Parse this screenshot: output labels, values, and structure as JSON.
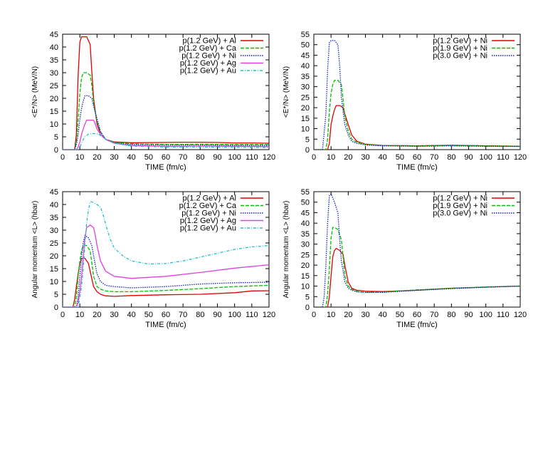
{
  "chart_data": [
    {
      "type": "line",
      "xlabel": "TIME (fm/c)",
      "ylabel": "<E*/N> (MeV/N)",
      "xlim": [
        0,
        120
      ],
      "ylim": [
        0,
        45
      ],
      "xticks": [
        0,
        10,
        20,
        30,
        40,
        50,
        60,
        70,
        80,
        90,
        100,
        110,
        120
      ],
      "yticks": [
        0,
        5,
        10,
        15,
        20,
        25,
        30,
        35,
        40,
        45
      ],
      "grid": false,
      "legend": "top-right",
      "series": [
        {
          "name": "p(1.2 GeV) + Al",
          "color": "#e00000",
          "dash": "solid",
          "x": [
            0,
            7,
            8,
            9,
            10,
            11,
            12,
            14,
            16,
            17,
            18,
            20,
            22,
            25,
            30,
            40,
            60,
            70,
            80,
            90,
            100,
            110,
            120
          ],
          "y": [
            0,
            0,
            6,
            29,
            42,
            44,
            44,
            44,
            41,
            30,
            20,
            10,
            6,
            4,
            3,
            2.7,
            2.8,
            2.9,
            2.9,
            2.8,
            2.6,
            2.6,
            2.5
          ]
        },
        {
          "name": "p(1.2 GeV) + Ca",
          "color": "#00c000",
          "dash": "dashed",
          "x": [
            0,
            7,
            8,
            9,
            10,
            11,
            12,
            14,
            16,
            17,
            18,
            20,
            22,
            25,
            30,
            40,
            60,
            80,
            100,
            120
          ],
          "y": [
            0,
            0,
            3,
            12,
            22,
            28,
            30,
            30,
            29,
            25,
            18,
            11,
            7,
            4,
            2.8,
            2.3,
            2.0,
            2.1,
            2.0,
            2.0
          ]
        },
        {
          "name": "p(1.2 GeV) + Ni",
          "color": "#1020c0",
          "dash": "dotted",
          "x": [
            0,
            7,
            8,
            9,
            10,
            11,
            12,
            13,
            15,
            17,
            18,
            20,
            22,
            25,
            30,
            40,
            60,
            80,
            100,
            120
          ],
          "y": [
            0,
            0,
            2,
            6,
            12,
            16,
            19,
            21,
            21,
            20,
            17,
            12,
            7,
            4,
            2.6,
            2.0,
            1.8,
            1.8,
            1.7,
            1.6
          ]
        },
        {
          "name": "p(1.2 GeV) + Ag",
          "color": "#e040e0",
          "dash": "solid",
          "x": [
            0,
            8,
            9,
            10,
            11,
            12,
            13,
            14,
            16,
            18,
            19,
            20,
            22,
            25,
            30,
            40,
            60,
            80,
            100,
            120
          ],
          "y": [
            0,
            0,
            1,
            3,
            6,
            8,
            10,
            11.5,
            11.5,
            11.5,
            10,
            8,
            6,
            4,
            2.5,
            1.6,
            1.3,
            1.4,
            1.3,
            1.2
          ]
        },
        {
          "name": "p(1.2 GeV) + Au",
          "color": "#20c0d0",
          "dash": "dashdot",
          "x": [
            0,
            9,
            10,
            11,
            12,
            13,
            15,
            17,
            19,
            21,
            22,
            25,
            30,
            40,
            60,
            80,
            100,
            120
          ],
          "y": [
            0,
            0,
            1,
            2.5,
            4,
            5,
            6,
            6.3,
            6.2,
            6,
            5.5,
            4,
            2.5,
            1.4,
            1.0,
            1.0,
            0.9,
            0.8
          ]
        }
      ]
    },
    {
      "type": "line",
      "xlabel": "TIME (fm/c)",
      "ylabel": "<E*/N> (MeV/N)",
      "xlim": [
        0,
        120
      ],
      "ylim": [
        0,
        55
      ],
      "xticks": [
        0,
        10,
        20,
        30,
        40,
        50,
        60,
        70,
        80,
        90,
        100,
        110,
        120
      ],
      "yticks": [
        0,
        5,
        10,
        15,
        20,
        25,
        30,
        35,
        40,
        45,
        50,
        55
      ],
      "grid": false,
      "legend": "top-right",
      "series": [
        {
          "name": "p(1.2 GeV) + Ni",
          "color": "#e00000",
          "dash": "solid",
          "x": [
            0,
            8,
            9,
            10,
            11,
            12,
            13,
            15,
            17,
            18,
            20,
            22,
            25,
            30,
            40,
            60,
            80,
            100,
            120
          ],
          "y": [
            0,
            0,
            3,
            12,
            16,
            19,
            21,
            21,
            20,
            17,
            12,
            7,
            4,
            2.6,
            2.0,
            1.8,
            2.1,
            1.8,
            1.6
          ]
        },
        {
          "name": "p(1.9 GeV) + Ni",
          "color": "#00c000",
          "dash": "dashed",
          "x": [
            0,
            7,
            8,
            9,
            10,
            11,
            12,
            14,
            16,
            17,
            18,
            20,
            22,
            25,
            30,
            40,
            60,
            80,
            100,
            120
          ],
          "y": [
            0,
            0,
            5,
            18,
            27,
            31,
            33,
            33,
            31,
            24,
            16,
            9,
            5,
            3.5,
            2.5,
            2.0,
            1.8,
            2.0,
            1.8,
            1.6
          ]
        },
        {
          "name": "p(3.0 GeV) + Ni",
          "color": "#1020c0",
          "dash": "dotted",
          "x": [
            0,
            5,
            6,
            7,
            8,
            9,
            10,
            12,
            14,
            15,
            16,
            18,
            20,
            22,
            25,
            30,
            40,
            60,
            80,
            100,
            120
          ],
          "y": [
            0,
            0,
            8,
            17,
            38,
            51,
            52,
            52,
            50,
            40,
            25,
            12,
            7,
            4,
            3,
            2.2,
            1.8,
            1.6,
            1.8,
            1.6,
            1.5
          ]
        }
      ]
    },
    {
      "type": "line",
      "xlabel": "TIME (fm/c)",
      "ylabel": "Angular momentum <L> (hbar)",
      "xlim": [
        0,
        120
      ],
      "ylim": [
        0,
        45
      ],
      "xticks": [
        0,
        10,
        20,
        30,
        40,
        50,
        60,
        70,
        80,
        90,
        100,
        110,
        120
      ],
      "yticks": [
        0,
        5,
        10,
        15,
        20,
        25,
        30,
        35,
        40,
        45
      ],
      "grid": false,
      "legend": "top-right",
      "series": [
        {
          "name": "p(1.2 GeV) + Al",
          "color": "#e00000",
          "dash": "solid",
          "x": [
            0,
            6,
            7,
            8,
            9,
            10,
            11,
            13,
            15,
            16,
            17,
            18,
            20,
            22,
            25,
            30,
            40,
            60,
            80,
            100,
            110,
            120
          ],
          "y": [
            0,
            0,
            3,
            8,
            13,
            17,
            19,
            19,
            17,
            14,
            11,
            8,
            6,
            5,
            4.4,
            4.2,
            4.5,
            4.8,
            5.0,
            5.6,
            6.3,
            6.4
          ]
        },
        {
          "name": "p(1.2 GeV) + Ca",
          "color": "#00c000",
          "dash": "dashed",
          "x": [
            0,
            7,
            8,
            9,
            10,
            11,
            12,
            14,
            16,
            17,
            18,
            20,
            22,
            25,
            30,
            40,
            60,
            80,
            100,
            120
          ],
          "y": [
            0,
            0,
            4,
            12,
            18,
            22,
            24,
            24,
            22,
            17,
            12,
            8,
            7,
            6.3,
            6,
            6,
            6.5,
            7.2,
            8,
            8.5
          ]
        },
        {
          "name": "p(1.2 GeV) + Ni",
          "color": "#1020c0",
          "dash": "dotted",
          "x": [
            0,
            8,
            9,
            10,
            11,
            12,
            13,
            15,
            17,
            18,
            20,
            22,
            25,
            30,
            40,
            60,
            80,
            100,
            120
          ],
          "y": [
            0,
            0,
            4,
            12,
            20,
            25,
            28,
            27,
            24,
            20,
            13,
            10,
            8.5,
            8,
            7.5,
            8,
            9,
            9.5,
            9.7
          ]
        },
        {
          "name": "p(1.2 GeV) + Ag",
          "color": "#e040e0",
          "dash": "solid",
          "x": [
            0,
            8,
            9,
            10,
            11,
            12,
            13,
            14,
            16,
            18,
            19,
            20,
            22,
            25,
            30,
            40,
            60,
            80,
            100,
            120
          ],
          "y": [
            0,
            0,
            2,
            6,
            12,
            20,
            27,
            31,
            32,
            31,
            28,
            24,
            18,
            14,
            12,
            11.2,
            12,
            13.5,
            15.2,
            16.5
          ]
        },
        {
          "name": "p(1.2 GeV) + Au",
          "color": "#20c0d0",
          "dash": "dashdot",
          "x": [
            0,
            9,
            10,
            11,
            12,
            13,
            14,
            15,
            16,
            17,
            20,
            22,
            24,
            26,
            28,
            30,
            35,
            40,
            50,
            60,
            70,
            80,
            90,
            100,
            110,
            120
          ],
          "y": [
            0,
            0,
            4,
            8,
            15,
            25,
            33,
            38,
            41,
            41,
            40,
            39,
            35,
            30,
            26,
            23,
            20,
            18,
            16.8,
            17,
            18,
            19.5,
            21,
            22.5,
            23.5,
            24
          ]
        }
      ]
    },
    {
      "type": "line",
      "xlabel": "TIME (fm/c)",
      "ylabel": "Angular momentum <L> (hbar)",
      "xlim": [
        0,
        120
      ],
      "ylim": [
        0,
        55
      ],
      "xticks": [
        0,
        10,
        20,
        30,
        40,
        50,
        60,
        70,
        80,
        90,
        100,
        110,
        120
      ],
      "yticks": [
        0,
        5,
        10,
        15,
        20,
        25,
        30,
        35,
        40,
        45,
        50,
        55
      ],
      "grid": false,
      "legend": "top-right",
      "series": [
        {
          "name": "p(1.2 GeV) + Ni",
          "color": "#e00000",
          "dash": "solid",
          "x": [
            0,
            8,
            9,
            10,
            11,
            12,
            13,
            15,
            17,
            18,
            20,
            22,
            25,
            30,
            40,
            60,
            80,
            100,
            120
          ],
          "y": [
            0,
            0,
            5,
            15,
            24,
            27,
            28,
            27,
            25,
            20,
            12,
            9,
            8,
            7.6,
            7.4,
            8,
            9,
            9.5,
            10
          ]
        },
        {
          "name": "p(1.9 GeV) + Ni",
          "color": "#00c000",
          "dash": "dashed",
          "x": [
            0,
            7,
            8,
            9,
            10,
            11,
            12,
            14,
            16,
            17,
            18,
            20,
            22,
            25,
            30,
            40,
            60,
            80,
            100,
            120
          ],
          "y": [
            0,
            0,
            6,
            18,
            33,
            38,
            38,
            37,
            32,
            24,
            15,
            10,
            8.5,
            7.5,
            7,
            7.2,
            8.2,
            9,
            9.6,
            10
          ]
        },
        {
          "name": "p(3.0 GeV) + Ni",
          "color": "#1020c0",
          "dash": "dotted",
          "x": [
            0,
            5,
            6,
            7,
            8,
            9,
            10,
            11,
            12,
            14,
            15,
            16,
            18,
            20,
            22,
            25,
            30,
            40,
            60,
            80,
            100,
            120
          ],
          "y": [
            0,
            0,
            5,
            20,
            40,
            53,
            54,
            52,
            50,
            45,
            32,
            22,
            12,
            9,
            8,
            7.3,
            7,
            7,
            8,
            8.8,
            9.5,
            10
          ]
        }
      ]
    }
  ]
}
